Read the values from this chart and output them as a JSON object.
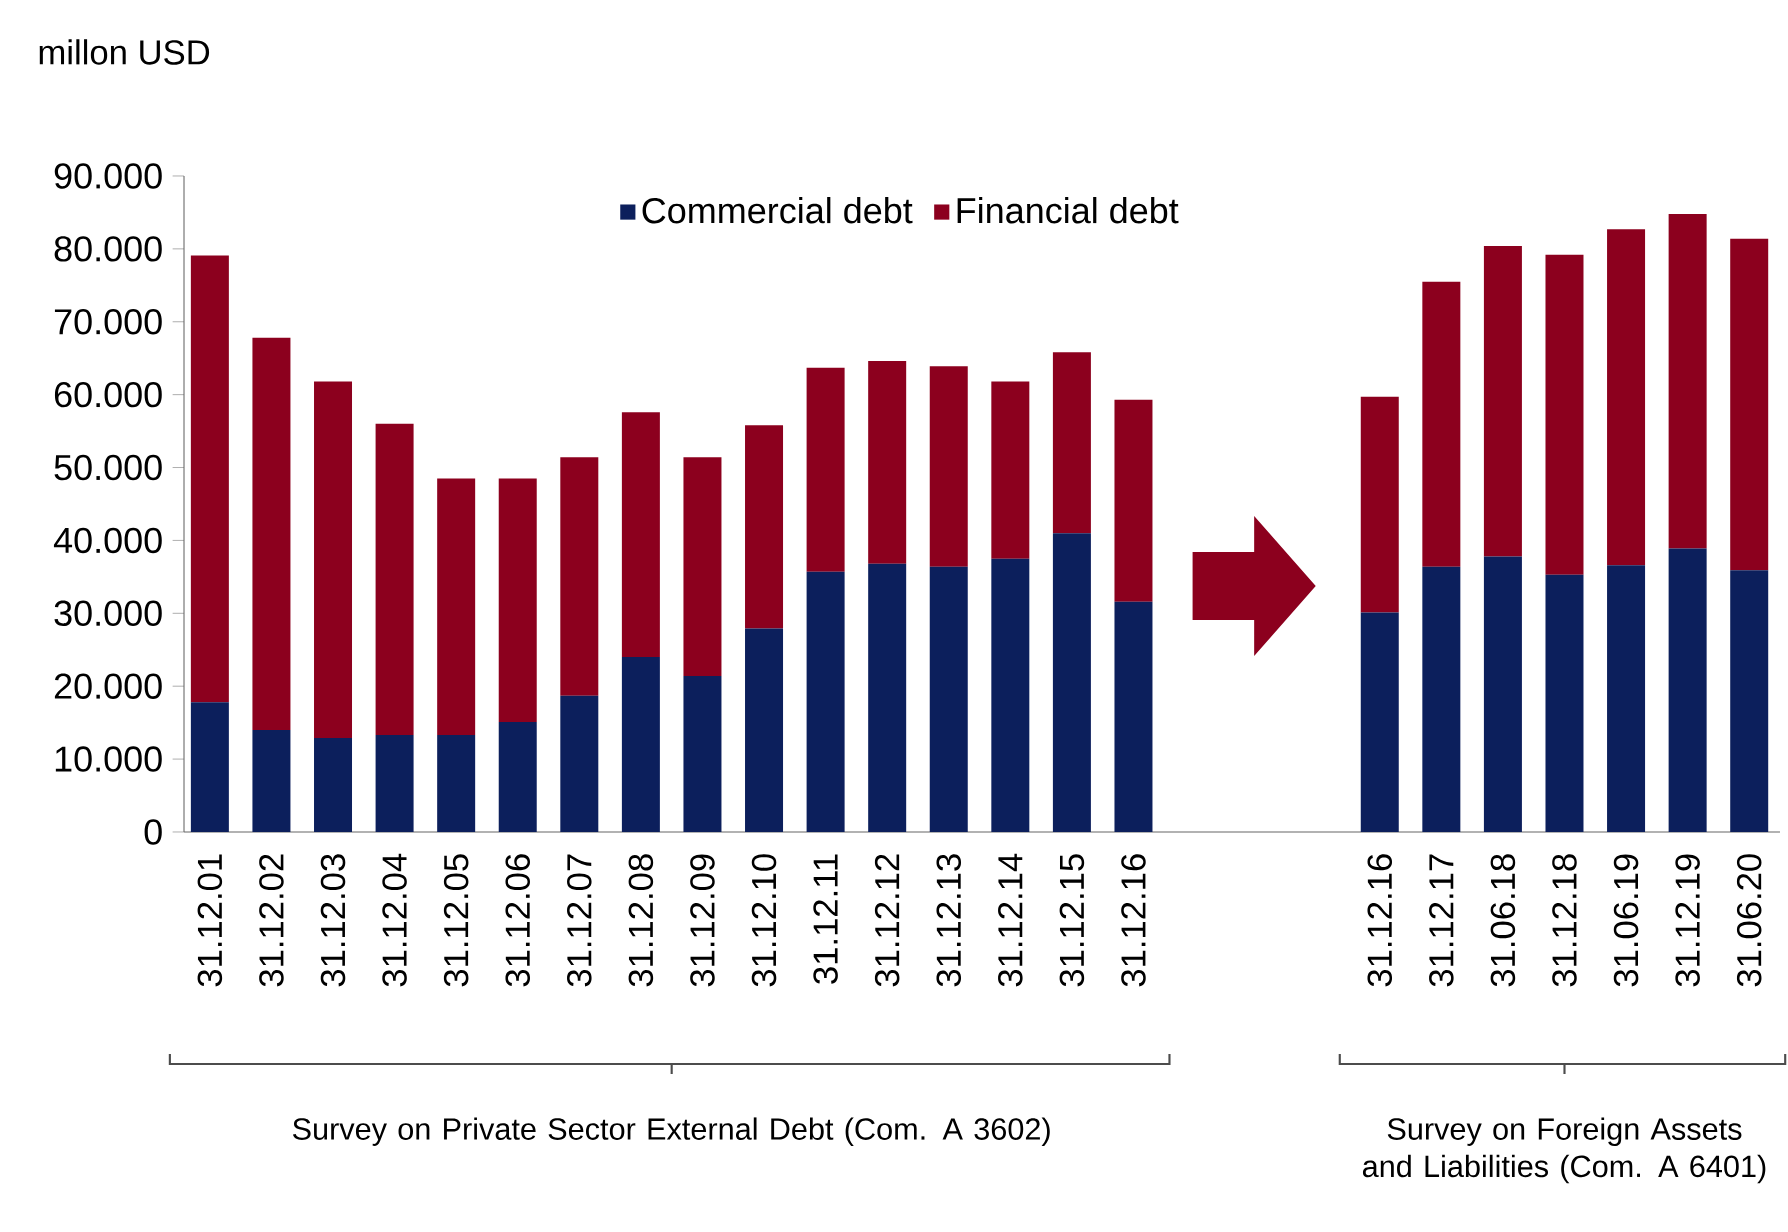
{
  "chart_data": {
    "type": "bar",
    "stacked": true,
    "categories": [
      "31.12.01",
      "31.12.02",
      "31.12.03",
      "31.12.04",
      "31.12.05",
      "31.12.06",
      "31.12.07",
      "31.12.08",
      "31.12.09",
      "31.12.10",
      "31.12.11",
      "31.12.12",
      "31.12.13",
      "31.12.14",
      "31.12.15",
      "31.12.16",
      null,
      null,
      null,
      "31.12.16",
      "31.12.17",
      "31.06.18",
      "31.12.18",
      "31.06.19",
      "31.12.19",
      "31.06.20"
    ],
    "series": [
      {
        "name": "Commercial debt",
        "color": "#0c1f5c",
        "values": [
          17800,
          14000,
          12900,
          13300,
          13300,
          15100,
          18700,
          24000,
          21400,
          27900,
          35700,
          36800,
          36400,
          37500,
          41000,
          31600,
          null,
          null,
          null,
          30100,
          36400,
          37800,
          35300,
          36600,
          38900,
          35900
        ]
      },
      {
        "name": "Financial debt",
        "color": "#8c001e",
        "values": [
          61300,
          53800,
          48900,
          42700,
          35200,
          33400,
          32700,
          33600,
          30000,
          27900,
          28000,
          27800,
          27500,
          24300,
          24800,
          27700,
          null,
          null,
          null,
          29600,
          39100,
          42600,
          43900,
          46100,
          45900,
          45500
        ]
      }
    ],
    "ylim": [
      0,
      90000
    ],
    "yticks": [
      {
        "value": 0,
        "label": "0"
      },
      {
        "value": 10000,
        "label": "10.000"
      },
      {
        "value": 20000,
        "label": "20.000"
      },
      {
        "value": 30000,
        "label": "30.000"
      },
      {
        "value": 40000,
        "label": "40.000"
      },
      {
        "value": 50000,
        "label": "50.000"
      },
      {
        "value": 60000,
        "label": "60.000"
      },
      {
        "value": 70000,
        "label": "70.000"
      },
      {
        "value": 80000,
        "label": "80.000"
      },
      {
        "value": 90000,
        "label": "90.000"
      }
    ],
    "legend": "top",
    "annotations": [
      "millon USD",
      "Survey on Private Sector External Debt (Com. A 3602)",
      "Survey on Foreign Assets and Liabilities (Com. A 6401)"
    ]
  }
}
